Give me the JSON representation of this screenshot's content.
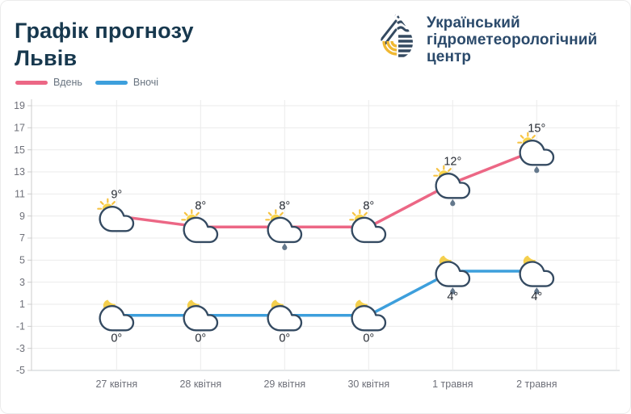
{
  "header": {
    "title_line1": "Графік прогнозу",
    "title_line2": "Львів"
  },
  "logo": {
    "line1": "Український",
    "line2": "гідрометеорологічний",
    "line3": "центр",
    "navy": "#344a61",
    "yellow": "#f0b832"
  },
  "colors": {
    "title_navy": "#17384e",
    "day_pink": "#ec6785",
    "night_blue": "#3d9fdc",
    "grid": "#ebebeb",
    "axis_line": "#c9cdd2",
    "axis_text": "#6e7079",
    "temp_text": "#262b33",
    "cloud_outline": "#344a61",
    "sun_yellow": "#f9d44c",
    "ray_yellow": "#f6c343",
    "moon_yellow": "#f4cf4d",
    "raindrop_gray": "#64788c"
  },
  "chart_data": {
    "type": "line",
    "title": "Графік прогнозу Львів",
    "xlabel": "",
    "ylabel": "",
    "grid": true,
    "legend_position": "top-left",
    "ylim": [
      -5,
      19
    ],
    "ytick_step": 2,
    "yticks": [
      19,
      17,
      15,
      13,
      11,
      9,
      7,
      5,
      3,
      1,
      -1,
      -3,
      -5
    ],
    "categories": [
      "27 квітня",
      "28 квітня",
      "29 квітня",
      "30 квітня",
      "1 травня",
      "2 травня"
    ],
    "series": [
      {
        "name": "Вдень",
        "color": "#ec6785",
        "icon": "sun-cloud",
        "label_position": "above",
        "values": [
          9,
          8,
          8,
          8,
          12,
          15
        ],
        "labels": [
          "9°",
          "8°",
          "8°",
          "8°",
          "12°",
          "15°"
        ],
        "rain": [
          false,
          false,
          true,
          false,
          true,
          true
        ]
      },
      {
        "name": "Вночі",
        "color": "#3d9fdc",
        "icon": "moon-cloud",
        "label_position": "below",
        "values": [
          0,
          0,
          0,
          0,
          4,
          4
        ],
        "labels": [
          "0°",
          "0°",
          "0°",
          "0°",
          "4°",
          "4°"
        ],
        "rain": [
          false,
          false,
          false,
          false,
          true,
          true
        ]
      }
    ]
  }
}
